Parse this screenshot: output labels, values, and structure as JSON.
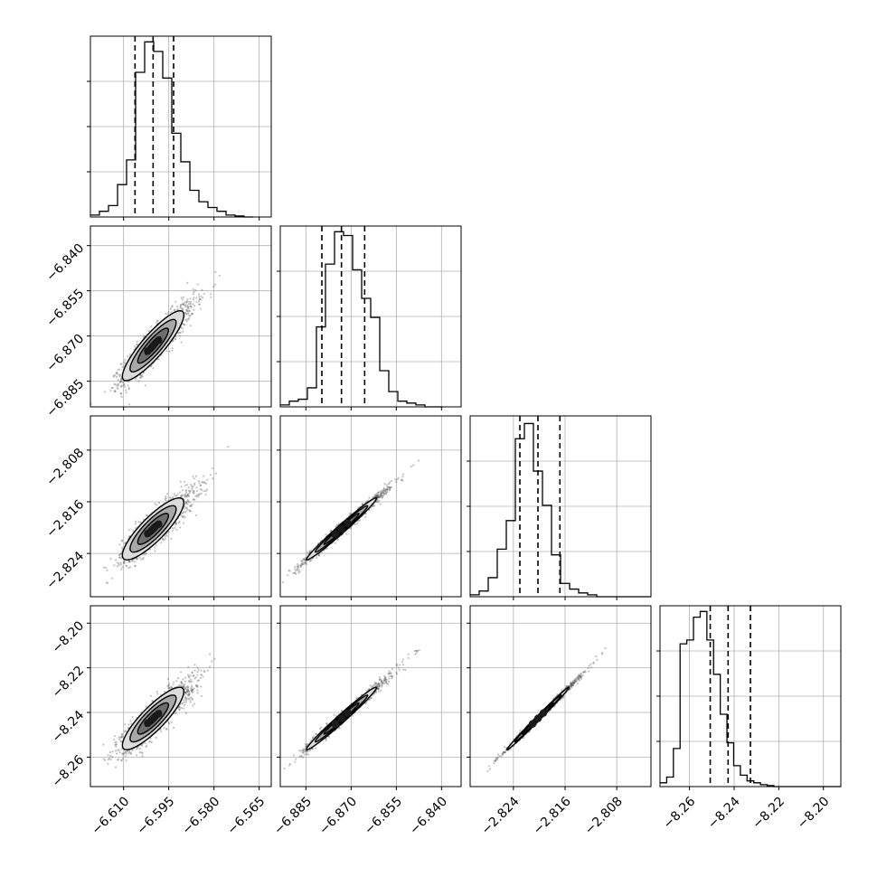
{
  "chart_data": {
    "type": "corner",
    "title": "",
    "parameters": [
      {
        "name": "",
        "range": [
          -6.621,
          -6.561
        ],
        "ticks": [
          -6.61,
          -6.595,
          -6.58,
          -6.565
        ],
        "tick_labels": [
          "−6.610",
          "−6.595",
          "−6.580",
          "−6.565"
        ],
        "quantiles": [
          -6.6062,
          -6.6002,
          -6.5934
        ],
        "bin_start": -6.621,
        "bin_width": 0.003,
        "histogram": [
          0.01,
          0.03,
          0.06,
          0.17,
          0.3,
          0.76,
          0.92,
          0.87,
          0.73,
          0.44,
          0.29,
          0.14,
          0.08,
          0.05,
          0.03,
          0.01,
          0.005,
          0
        ]
      },
      {
        "name": "",
        "range": [
          -6.8935,
          -6.8335
        ],
        "ticks": [
          -6.885,
          -6.87,
          -6.855,
          -6.84
        ],
        "tick_labels": [
          "−6.885",
          "−6.870",
          "−6.855",
          "−6.840"
        ],
        "quantiles": [
          -6.8797,
          -6.8732,
          -6.8655
        ],
        "bin_start": -6.8935,
        "bin_width": 0.003,
        "histogram": [
          0.01,
          0.03,
          0.04,
          0.1,
          0.42,
          0.75,
          0.92,
          0.9,
          0.72,
          0.57,
          0.47,
          0.19,
          0.08,
          0.03,
          0.02,
          0.01,
          0,
          0
        ]
      },
      {
        "name": "",
        "range": [
          -2.8307,
          -2.8027
        ],
        "ticks": [
          -2.824,
          -2.816,
          -2.808
        ],
        "tick_labels": [
          "−2.824",
          "−2.816",
          "−2.808"
        ],
        "quantiles": [
          -2.823,
          -2.8202,
          -2.8168
        ],
        "bin_start": -2.8307,
        "bin_width": 0.0014,
        "histogram": [
          0.01,
          0.03,
          0.1,
          0.25,
          0.4,
          0.83,
          0.91,
          0.66,
          0.48,
          0.22,
          0.07,
          0.04,
          0.02,
          0.01,
          0,
          0,
          0,
          0,
          0,
          0
        ]
      },
      {
        "name": "",
        "range": [
          -8.2732,
          -8.1922
        ],
        "ticks": [
          -8.26,
          -8.24,
          -8.22,
          -8.2
        ],
        "tick_labels": [
          "−8.26",
          "−8.24",
          "−8.22",
          "−8.20"
        ],
        "quantiles": [
          -8.2507,
          -8.2427,
          -8.2327
        ],
        "bin_start": -8.2732,
        "bin_width": 0.003,
        "histogram": [
          0.02,
          0.05,
          0.2,
          0.75,
          0.77,
          0.89,
          0.92,
          0.77,
          0.59,
          0.38,
          0.23,
          0.11,
          0.06,
          0.03,
          0.02,
          0.01,
          0.005,
          0,
          0,
          0,
          0,
          0,
          0,
          0,
          0,
          0,
          0
        ]
      }
    ],
    "pairs": [
      {
        "x": 0,
        "y": 1,
        "mean": [
          -6.6002,
          -6.8732
        ],
        "sd": [
          0.0051,
          0.0058
        ],
        "corr": 0.88
      },
      {
        "x": 0,
        "y": 2,
        "mean": [
          -6.6002,
          -2.8202
        ],
        "sd": [
          0.0051,
          0.0024
        ],
        "corr": 0.85
      },
      {
        "x": 1,
        "y": 2,
        "mean": [
          -6.8732,
          -2.8202
        ],
        "sd": [
          0.0058,
          0.0024
        ],
        "corr": 0.985
      },
      {
        "x": 0,
        "y": 3,
        "mean": [
          -6.6002,
          -8.2427
        ],
        "sd": [
          0.0051,
          0.007
        ],
        "corr": 0.86
      },
      {
        "x": 1,
        "y": 3,
        "mean": [
          -6.8732,
          -8.2427
        ],
        "sd": [
          0.0058,
          0.007
        ],
        "corr": 0.985
      },
      {
        "x": 2,
        "y": 3,
        "mean": [
          -2.8202,
          -8.2427
        ],
        "sd": [
          0.0024,
          0.007
        ],
        "corr": 0.995
      }
    ],
    "contour_levels_sigma": [
      0.5,
      1.0,
      1.5,
      2.0
    ],
    "grid": true,
    "colors": {
      "line": "#000000",
      "grid": "#b0b0b0",
      "scatter": "#555555",
      "fill_levels": [
        "#262626",
        "#6e6e6e",
        "#a8a8a8",
        "#dcdcdc"
      ]
    }
  }
}
